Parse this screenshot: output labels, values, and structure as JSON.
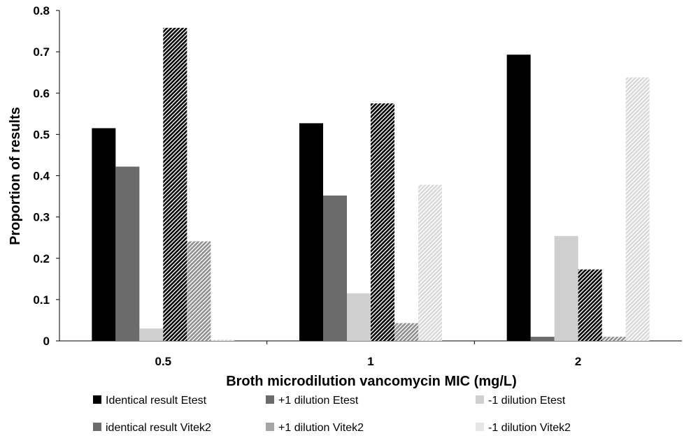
{
  "chart_data": {
    "type": "bar",
    "title": "",
    "xlabel": "Broth microdilution vancomycin MIC (mg/L)",
    "ylabel": "Proportion of results",
    "ylim": [
      0,
      0.8
    ],
    "yticks": [
      "0",
      "0.1",
      "0.2",
      "0.3",
      "0.4",
      "0.5",
      "0.6",
      "0.7",
      "0.8"
    ],
    "categories": [
      "0.5",
      "1",
      "2"
    ],
    "grid": false,
    "legend_position": "bottom",
    "series": [
      {
        "name": "Identical result Etest",
        "values": [
          0.515,
          0.527,
          0.693
        ],
        "color": "#000000",
        "pattern": "solid"
      },
      {
        "name": "+1 dilution Etest",
        "values": [
          0.422,
          0.352,
          0.01
        ],
        "color": "#6b6b6b",
        "pattern": "solid"
      },
      {
        "name": "-1 dilution Etest",
        "values": [
          0.03,
          0.115,
          0.254
        ],
        "color": "#cfcfcf",
        "pattern": "solid"
      },
      {
        "name": "identical result Vitek2",
        "values": [
          0.758,
          0.575,
          0.173
        ],
        "color": "#000000",
        "pattern": "hatch-dark"
      },
      {
        "name": "+1 dilution Vitek2",
        "values": [
          0.241,
          0.043,
          0.01
        ],
        "color": "#8f8f8f",
        "pattern": "hatch-mid"
      },
      {
        "name": "-1 dilution Vitek2",
        "values": [
          0.003,
          0.378,
          0.638
        ],
        "color": "#d9d9d9",
        "pattern": "hatch-light"
      }
    ],
    "legend_swatch_colors": [
      "#000000",
      "#6b6b6b",
      "#cfcfcf",
      "#6b6b6b",
      "#a6a6a6",
      "#e6e6e6"
    ]
  }
}
